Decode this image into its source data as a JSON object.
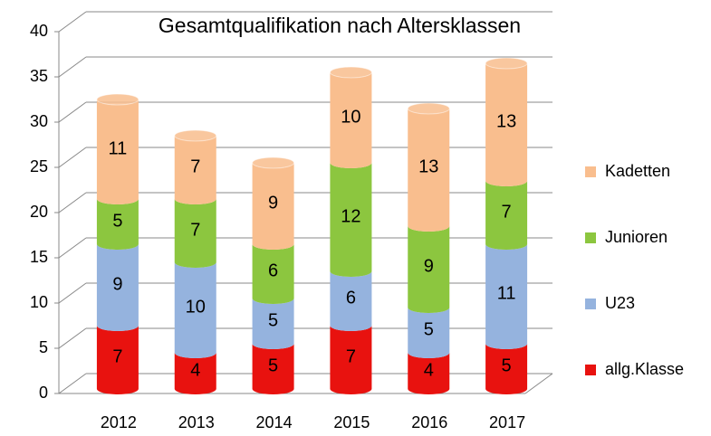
{
  "chart_data": {
    "type": "bar",
    "stacked": true,
    "title": "Gesamtqualifikation nach Altersklassen",
    "categories": [
      "2012",
      "2013",
      "2014",
      "2015",
      "2016",
      "2017"
    ],
    "series": [
      {
        "name": "allg.Klasse",
        "color": "#e8120f",
        "values": [
          7,
          4,
          5,
          7,
          4,
          5
        ]
      },
      {
        "name": "U23",
        "color": "#95b3de",
        "values": [
          9,
          10,
          5,
          6,
          5,
          11
        ]
      },
      {
        "name": "Junioren",
        "color": "#8cc63f",
        "values": [
          5,
          7,
          6,
          12,
          9,
          7
        ]
      },
      {
        "name": "Kadetten",
        "color": "#f9be8e",
        "values": [
          11,
          7,
          9,
          10,
          13,
          13
        ]
      }
    ],
    "ylim": [
      0,
      40
    ],
    "yticks": [
      0,
      5,
      10,
      15,
      20,
      25,
      30,
      35,
      40
    ],
    "grid": true,
    "legend": "right"
  }
}
